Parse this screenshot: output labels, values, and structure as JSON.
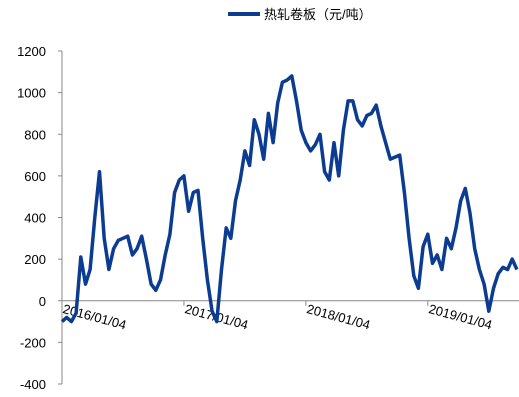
{
  "chart_data": {
    "type": "line",
    "legend": "top",
    "categories": [
      "2016/01/04",
      null,
      null,
      null,
      null,
      null,
      null,
      null,
      null,
      null,
      null,
      null,
      null,
      null,
      null,
      null,
      null,
      null,
      null,
      null,
      null,
      null,
      null,
      null,
      null,
      null,
      "2017/01/04",
      null,
      null,
      null,
      null,
      null,
      null,
      null,
      null,
      null,
      null,
      null,
      null,
      null,
      null,
      null,
      null,
      null,
      null,
      null,
      null,
      null,
      null,
      null,
      null,
      null,
      "2018/01/04",
      null,
      null,
      null,
      null,
      null,
      null,
      null,
      null,
      null,
      null,
      null,
      null,
      null,
      null,
      null,
      null,
      null,
      null,
      null,
      null,
      null,
      null,
      null,
      null,
      null,
      "2019/01/04",
      null,
      null,
      null,
      null,
      null,
      null,
      null,
      null,
      null,
      null,
      null,
      null,
      null,
      null,
      null,
      null,
      null,
      null,
      null
    ],
    "series": [
      {
        "name": "热轧卷板（元/吨）",
        "color": "#0b3c91",
        "values": [
          -100,
          -80,
          -100,
          -60,
          210,
          80,
          150,
          400,
          620,
          300,
          150,
          250,
          290,
          300,
          310,
          220,
          250,
          310,
          200,
          80,
          50,
          100,
          220,
          320,
          520,
          580,
          600,
          430,
          520,
          530,
          300,
          100,
          -50,
          -100,
          150,
          350,
          300,
          480,
          580,
          720,
          650,
          870,
          800,
          680,
          900,
          760,
          950,
          1050,
          1060,
          1080,
          960,
          820,
          760,
          720,
          750,
          800,
          620,
          580,
          760,
          600,
          820,
          960,
          960,
          870,
          840,
          890,
          900,
          940,
          840,
          760,
          680,
          690,
          700,
          520,
          300,
          120,
          60,
          260,
          320,
          180,
          220,
          150,
          300,
          250,
          350,
          480,
          540,
          420,
          250,
          150,
          80,
          -50,
          60,
          130,
          160,
          150,
          200,
          150
        ]
      }
    ],
    "ylim": [
      -400,
      1200
    ],
    "yticks": [
      -400,
      -200,
      0,
      200,
      400,
      600,
      800,
      1000,
      1200
    ]
  }
}
